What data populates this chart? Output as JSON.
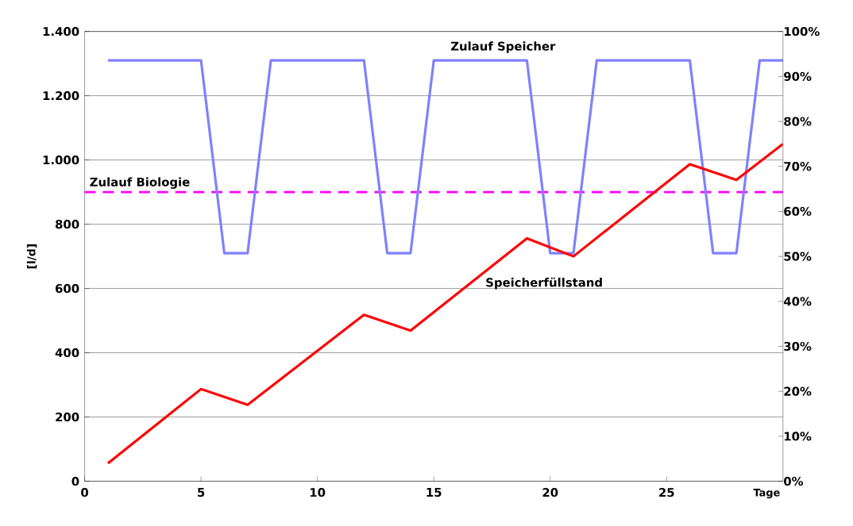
{
  "chart_data": {
    "type": "line",
    "xlabel": "Tage",
    "ylabel": "[l/d]",
    "xlim": [
      0,
      30
    ],
    "xticks": [
      0,
      5,
      10,
      15,
      20,
      25
    ],
    "ylim": [
      0,
      1400
    ],
    "yticks": [
      0,
      200,
      400,
      600,
      800,
      {
        "value": 1000,
        "label": "1.000"
      },
      {
        "value": 1200,
        "label": "1.200"
      },
      {
        "value": 1400,
        "label": "1.400"
      }
    ],
    "y2lim": [
      0,
      100
    ],
    "y2ticks": [
      {
        "value": 0,
        "label": "0%"
      },
      {
        "value": 10,
        "label": "10%"
      },
      {
        "value": 20,
        "label": "20%"
      },
      {
        "value": 30,
        "label": "30%"
      },
      {
        "value": 40,
        "label": "40%"
      },
      {
        "value": 50,
        "label": "50%"
      },
      {
        "value": 60,
        "label": "60%"
      },
      {
        "value": 70,
        "label": "70%"
      },
      {
        "value": 80,
        "label": "80%"
      },
      {
        "value": 90,
        "label": "90%"
      },
      {
        "value": 100,
        "label": "100%"
      }
    ],
    "grid": "y",
    "marker": "none",
    "series": [
      {
        "name": "Zulauf Speicher",
        "color": "#8080ff",
        "line_style": "solid",
        "x": [
          1,
          5,
          6,
          7,
          8,
          12,
          13,
          14,
          15,
          19,
          20,
          21,
          22,
          26,
          27,
          28,
          29,
          30
        ],
        "values": [
          1310,
          1310,
          710,
          710,
          1310,
          1310,
          710,
          710,
          1310,
          1310,
          710,
          710,
          1310,
          1310,
          710,
          710,
          1310,
          1310
        ]
      },
      {
        "name": "Speicherfüllstand",
        "color": "#ff0000",
        "line_style": "solid",
        "axis": "y2",
        "x": [
          1,
          5,
          7,
          12,
          14,
          19,
          21,
          26,
          28,
          30
        ],
        "values": [
          4,
          20.5,
          17,
          37,
          33.5,
          54,
          50,
          70.5,
          67,
          75
        ]
      }
    ],
    "ref_lines": [
      {
        "axis": "y",
        "value": 900,
        "label": "Zulauf Biologie",
        "color": "#ff00ff",
        "line_style": "dashed"
      }
    ]
  }
}
